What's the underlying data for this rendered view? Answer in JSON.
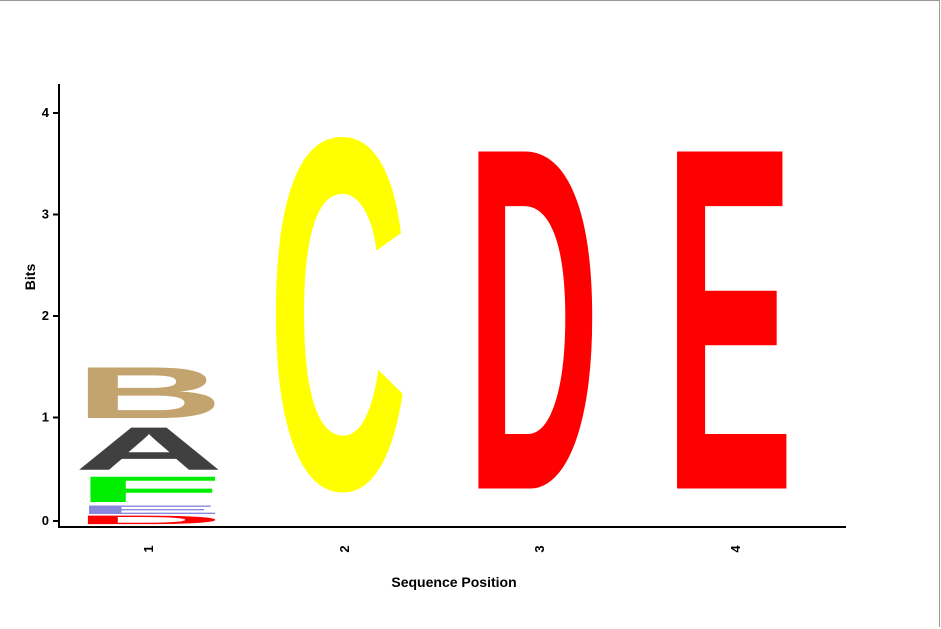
{
  "chart_data": {
    "type": "sequence-logo",
    "xlabel": "Sequence Position",
    "ylabel": "Bits",
    "ylim": [
      0,
      4.3
    ],
    "yticks": [
      "0",
      "1",
      "2",
      "3",
      "4"
    ],
    "positions": [
      {
        "label": "1",
        "stack": [
          {
            "letter": "D",
            "bits": 0.1,
            "color": "#ff0000"
          },
          {
            "letter": "E",
            "bits": 0.1,
            "color": "#8888dd"
          },
          {
            "letter": "F",
            "bits": 0.3,
            "color": "#00ee00"
          },
          {
            "letter": "A",
            "bits": 0.5,
            "color": "#404040"
          },
          {
            "letter": "B",
            "bits": 0.6,
            "color": "#c4a46e"
          }
        ]
      },
      {
        "label": "2",
        "stack": [
          {
            "letter": "C",
            "bits": 4.1,
            "color": "#ffff00"
          }
        ]
      },
      {
        "label": "3",
        "stack": [
          {
            "letter": "D",
            "bits": 4.0,
            "color": "#ff0000"
          }
        ]
      },
      {
        "label": "4",
        "stack": [
          {
            "letter": "E",
            "bits": 4.0,
            "color": "#ff0000"
          }
        ]
      }
    ]
  }
}
